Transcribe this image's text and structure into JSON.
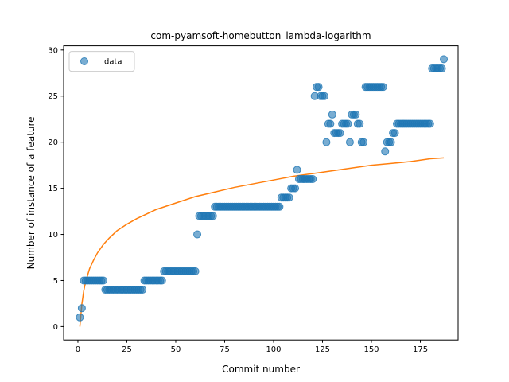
{
  "chart_data": {
    "type": "scatter",
    "title": "com-pyamsoft-homebutton_lambda-logarithm",
    "xlabel": "Commit number",
    "ylabel": "Number of instance of a feature",
    "xlim": [
      -7.3,
      194.3
    ],
    "ylim": [
      -1.45,
      30.45
    ],
    "xticks": [
      0,
      25,
      50,
      75,
      100,
      125,
      150,
      175
    ],
    "yticks": [
      0,
      5,
      10,
      15,
      20,
      25,
      30
    ],
    "grid": false,
    "legend": {
      "position": "top-left",
      "entries": [
        "data"
      ]
    },
    "colors": {
      "scatter": "#1f77b4",
      "fit": "#ff7f0e",
      "axes": "#000000",
      "background": "#ffffff"
    },
    "series": [
      {
        "name": "data",
        "kind": "scatter",
        "points": [
          [
            1,
            1
          ],
          [
            2,
            2
          ],
          [
            3,
            5
          ],
          [
            4,
            5
          ],
          [
            5,
            5
          ],
          [
            6,
            5
          ],
          [
            7,
            5
          ],
          [
            8,
            5
          ],
          [
            9,
            5
          ],
          [
            10,
            5
          ],
          [
            11,
            5
          ],
          [
            12,
            5
          ],
          [
            13,
            5
          ],
          [
            14,
            4
          ],
          [
            15,
            4
          ],
          [
            16,
            4
          ],
          [
            17,
            4
          ],
          [
            18,
            4
          ],
          [
            19,
            4
          ],
          [
            20,
            4
          ],
          [
            21,
            4
          ],
          [
            22,
            4
          ],
          [
            23,
            4
          ],
          [
            24,
            4
          ],
          [
            25,
            4
          ],
          [
            26,
            4
          ],
          [
            27,
            4
          ],
          [
            28,
            4
          ],
          [
            29,
            4
          ],
          [
            30,
            4
          ],
          [
            31,
            4
          ],
          [
            32,
            4
          ],
          [
            33,
            4
          ],
          [
            34,
            5
          ],
          [
            35,
            5
          ],
          [
            36,
            5
          ],
          [
            37,
            5
          ],
          [
            38,
            5
          ],
          [
            39,
            5
          ],
          [
            40,
            5
          ],
          [
            41,
            5
          ],
          [
            42,
            5
          ],
          [
            43,
            5
          ],
          [
            44,
            6
          ],
          [
            45,
            6
          ],
          [
            46,
            6
          ],
          [
            47,
            6
          ],
          [
            48,
            6
          ],
          [
            49,
            6
          ],
          [
            50,
            6
          ],
          [
            51,
            6
          ],
          [
            52,
            6
          ],
          [
            53,
            6
          ],
          [
            54,
            6
          ],
          [
            55,
            6
          ],
          [
            56,
            6
          ],
          [
            57,
            6
          ],
          [
            58,
            6
          ],
          [
            59,
            6
          ],
          [
            60,
            6
          ],
          [
            61,
            10
          ],
          [
            62,
            12
          ],
          [
            63,
            12
          ],
          [
            64,
            12
          ],
          [
            65,
            12
          ],
          [
            66,
            12
          ],
          [
            67,
            12
          ],
          [
            68,
            12
          ],
          [
            69,
            12
          ],
          [
            70,
            13
          ],
          [
            71,
            13
          ],
          [
            72,
            13
          ],
          [
            73,
            13
          ],
          [
            74,
            13
          ],
          [
            75,
            13
          ],
          [
            76,
            13
          ],
          [
            77,
            13
          ],
          [
            78,
            13
          ],
          [
            79,
            13
          ],
          [
            80,
            13
          ],
          [
            81,
            13
          ],
          [
            82,
            13
          ],
          [
            83,
            13
          ],
          [
            84,
            13
          ],
          [
            85,
            13
          ],
          [
            86,
            13
          ],
          [
            87,
            13
          ],
          [
            88,
            13
          ],
          [
            89,
            13
          ],
          [
            90,
            13
          ],
          [
            91,
            13
          ],
          [
            92,
            13
          ],
          [
            93,
            13
          ],
          [
            94,
            13
          ],
          [
            95,
            13
          ],
          [
            96,
            13
          ],
          [
            97,
            13
          ],
          [
            98,
            13
          ],
          [
            99,
            13
          ],
          [
            100,
            13
          ],
          [
            101,
            13
          ],
          [
            102,
            13
          ],
          [
            103,
            13
          ],
          [
            104,
            14
          ],
          [
            105,
            14
          ],
          [
            106,
            14
          ],
          [
            107,
            14
          ],
          [
            108,
            14
          ],
          [
            109,
            15
          ],
          [
            110,
            15
          ],
          [
            111,
            15
          ],
          [
            112,
            17
          ],
          [
            113,
            16
          ],
          [
            114,
            16
          ],
          [
            115,
            16
          ],
          [
            116,
            16
          ],
          [
            117,
            16
          ],
          [
            118,
            16
          ],
          [
            119,
            16
          ],
          [
            120,
            16
          ],
          [
            121,
            25
          ],
          [
            122,
            26
          ],
          [
            123,
            26
          ],
          [
            124,
            25
          ],
          [
            125,
            25
          ],
          [
            126,
            25
          ],
          [
            127,
            20
          ],
          [
            128,
            22
          ],
          [
            129,
            22
          ],
          [
            130,
            23
          ],
          [
            131,
            21
          ],
          [
            132,
            21
          ],
          [
            133,
            21
          ],
          [
            134,
            21
          ],
          [
            135,
            22
          ],
          [
            136,
            22
          ],
          [
            137,
            22
          ],
          [
            138,
            22
          ],
          [
            139,
            20
          ],
          [
            140,
            23
          ],
          [
            141,
            23
          ],
          [
            142,
            23
          ],
          [
            143,
            22
          ],
          [
            144,
            22
          ],
          [
            145,
            20
          ],
          [
            146,
            20
          ],
          [
            147,
            26
          ],
          [
            148,
            26
          ],
          [
            149,
            26
          ],
          [
            150,
            26
          ],
          [
            151,
            26
          ],
          [
            152,
            26
          ],
          [
            153,
            26
          ],
          [
            154,
            26
          ],
          [
            155,
            26
          ],
          [
            156,
            26
          ],
          [
            157,
            19
          ],
          [
            158,
            20
          ],
          [
            159,
            20
          ],
          [
            160,
            20
          ],
          [
            161,
            21
          ],
          [
            162,
            21
          ],
          [
            163,
            22
          ],
          [
            164,
            22
          ],
          [
            165,
            22
          ],
          [
            166,
            22
          ],
          [
            167,
            22
          ],
          [
            168,
            22
          ],
          [
            169,
            22
          ],
          [
            170,
            22
          ],
          [
            171,
            22
          ],
          [
            172,
            22
          ],
          [
            173,
            22
          ],
          [
            174,
            22
          ],
          [
            175,
            22
          ],
          [
            176,
            22
          ],
          [
            177,
            22
          ],
          [
            178,
            22
          ],
          [
            179,
            22
          ],
          [
            180,
            22
          ],
          [
            181,
            28
          ],
          [
            182,
            28
          ],
          [
            183,
            28
          ],
          [
            184,
            28
          ],
          [
            185,
            28
          ],
          [
            186,
            28
          ],
          [
            187,
            29
          ]
        ]
      },
      {
        "kind": "line",
        "model": "logarithmic fit",
        "points": [
          [
            1,
            0.0
          ],
          [
            2,
            2.4
          ],
          [
            3,
            3.9
          ],
          [
            4,
            4.9
          ],
          [
            6,
            6.3
          ],
          [
            8,
            7.2
          ],
          [
            10,
            8.0
          ],
          [
            13,
            8.9
          ],
          [
            16,
            9.6
          ],
          [
            20,
            10.4
          ],
          [
            25,
            11.1
          ],
          [
            30,
            11.7
          ],
          [
            40,
            12.7
          ],
          [
            50,
            13.4
          ],
          [
            60,
            14.1
          ],
          [
            70,
            14.6
          ],
          [
            80,
            15.1
          ],
          [
            90,
            15.5
          ],
          [
            100,
            15.9
          ],
          [
            110,
            16.3
          ],
          [
            120,
            16.6
          ],
          [
            130,
            16.9
          ],
          [
            140,
            17.2
          ],
          [
            150,
            17.5
          ],
          [
            160,
            17.7
          ],
          [
            170,
            17.9
          ],
          [
            180,
            18.2
          ],
          [
            187,
            18.3
          ]
        ]
      }
    ]
  }
}
